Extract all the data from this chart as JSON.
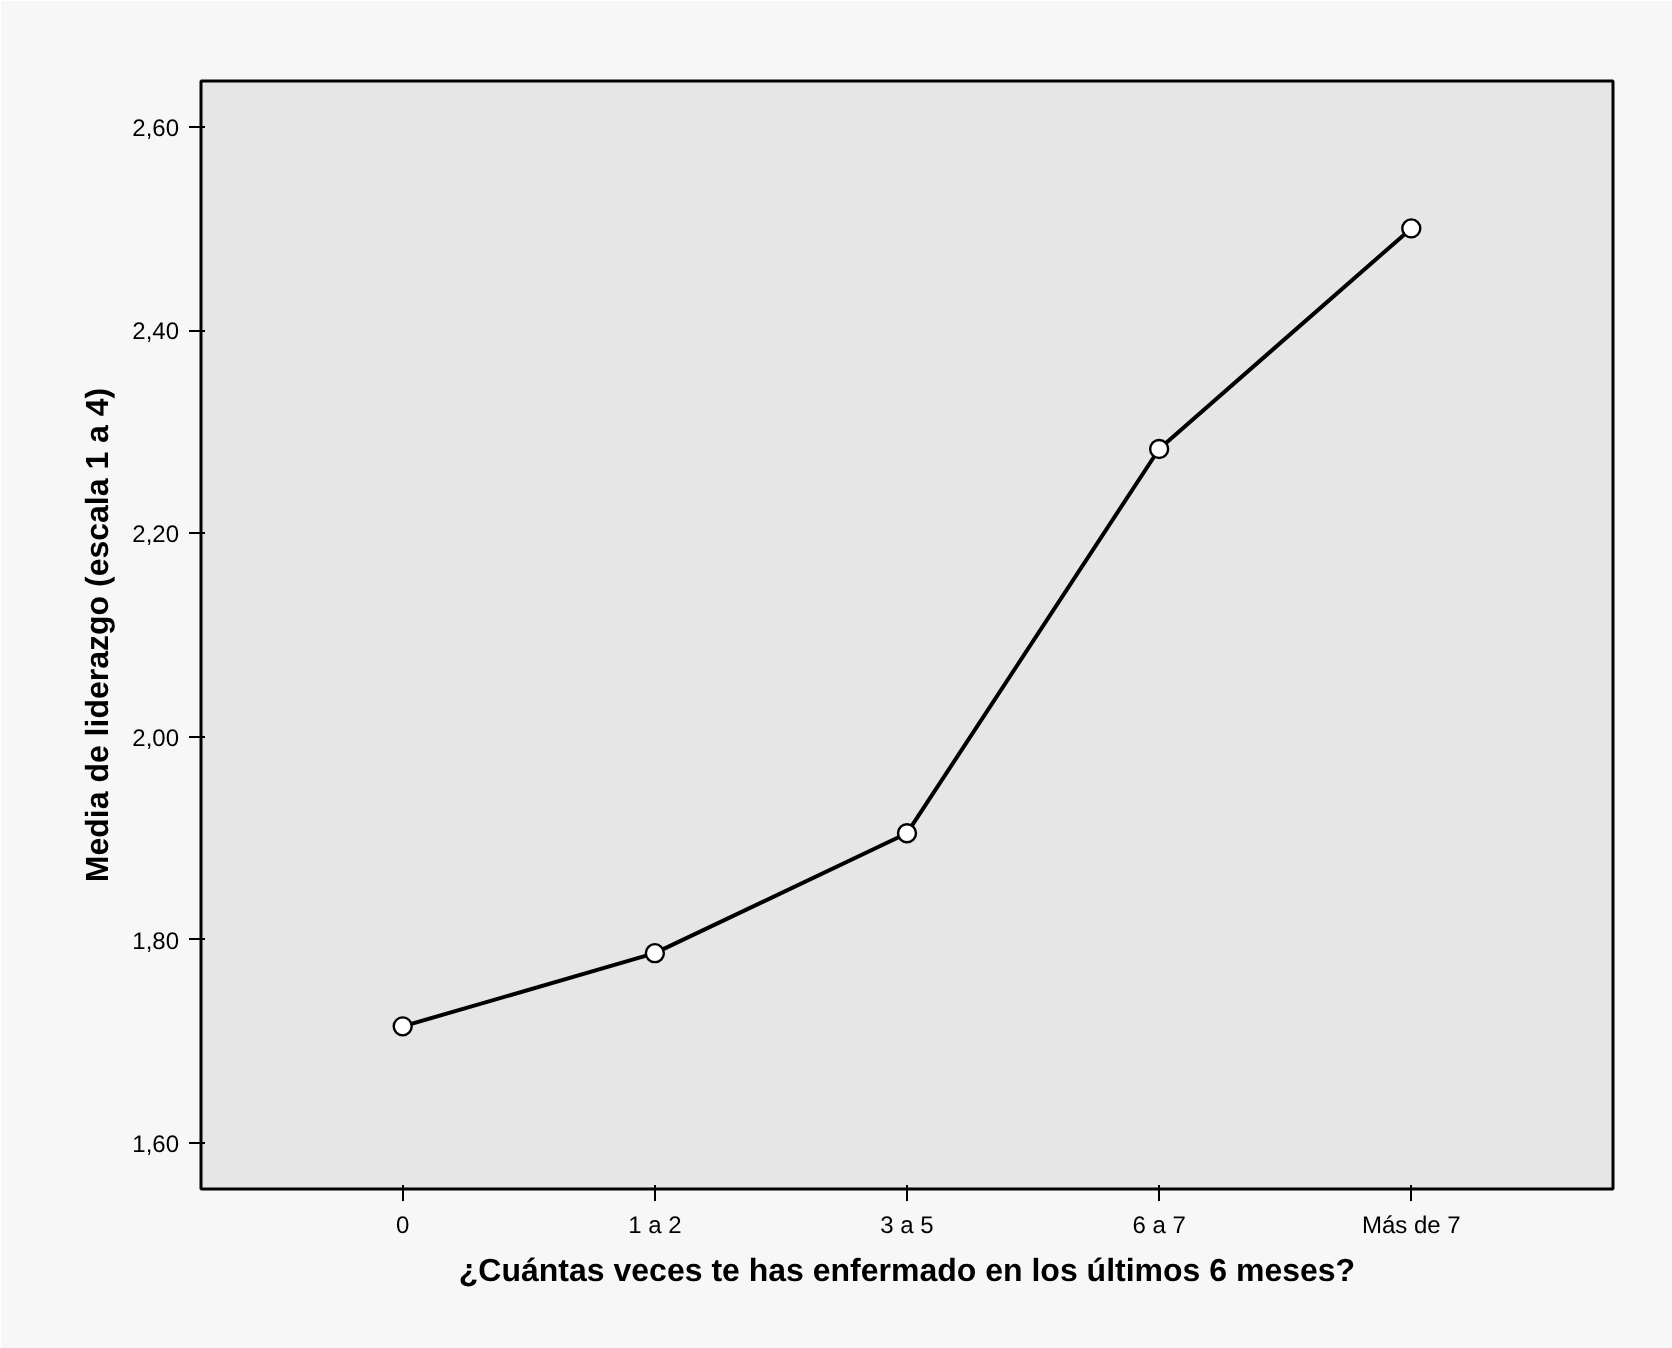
{
  "chart_data": {
    "type": "line",
    "xlabel": "¿Cuántas veces te has enfermado en los últimos 6 meses?",
    "ylabel": "Media de liderazgo (escala 1 a 4)",
    "categories": [
      "0",
      "1 a 2",
      "3 a 5",
      "6 a 7",
      "Más de 7"
    ],
    "series": [
      {
        "color": "#000000",
        "values": [
          1.715,
          1.787,
          1.905,
          2.283,
          2.5
        ]
      }
    ],
    "ylim": [
      1.555,
      2.645
    ],
    "yticks": [
      {
        "value": 1.6,
        "label": "1,60"
      },
      {
        "value": 1.8,
        "label": "1,80"
      },
      {
        "value": 2.0,
        "label": "2,00"
      },
      {
        "value": 2.2,
        "label": "2,20"
      },
      {
        "value": 2.4,
        "label": "2,40"
      },
      {
        "value": 2.6,
        "label": "2,60"
      }
    ],
    "marker": "circle",
    "line_style": "solid"
  }
}
